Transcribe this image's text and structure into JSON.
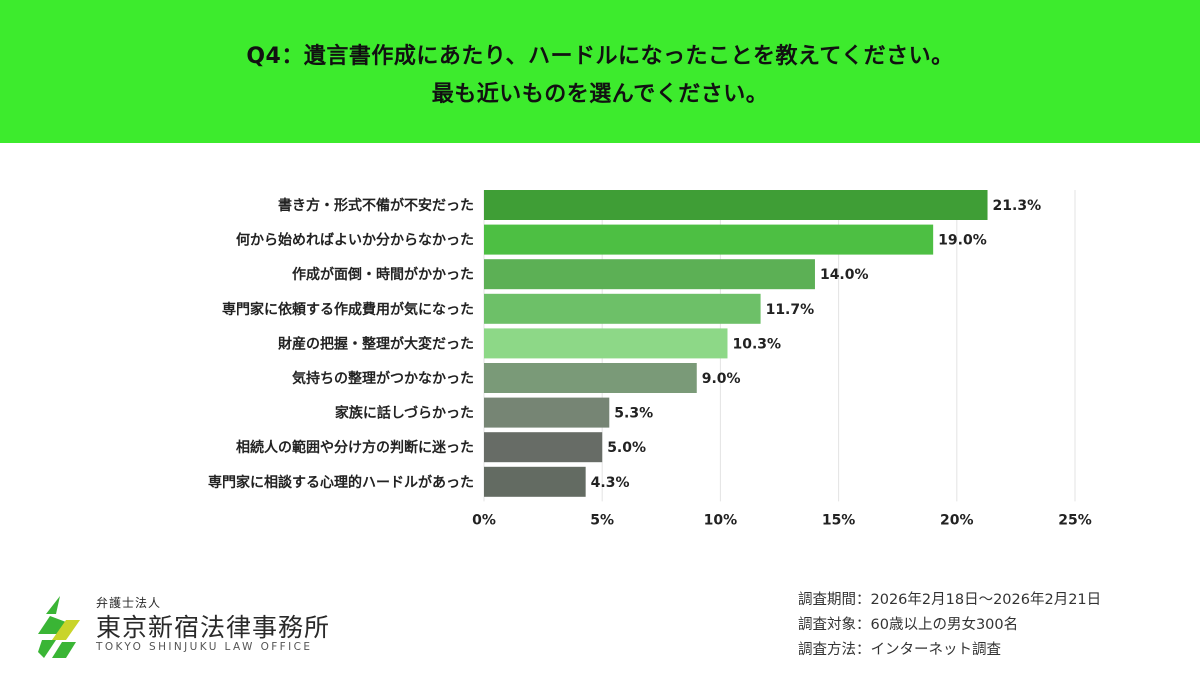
{
  "header": {
    "title_line1": "Q4：遺言書作成にあたり、ハードルになったことを教えてください。",
    "title_line2": "最も近いものを選んでください。",
    "background": "#3deb2d"
  },
  "chart_data": {
    "type": "bar",
    "orientation": "horizontal",
    "categories": [
      "書き方・形式不備が不安だった",
      "何から始めればよいか分からなかった",
      "作成が面倒・時間がかかった",
      "専門家に依頼する作成費用が気になった",
      "財産の把握・整理が大変だった",
      "気持ちの整理がつかなかった",
      "家族に話しづらかった",
      "相続人の範囲や分け方の判断に迷った",
      "専門家に相談する心理的ハードルがあった"
    ],
    "values": [
      21.3,
      19.0,
      14.0,
      11.7,
      10.3,
      9.0,
      5.3,
      5.0,
      4.3
    ],
    "value_labels": [
      "21.3%",
      "19.0%",
      "14.0%",
      "11.7%",
      "10.3%",
      "9.0%",
      "5.3%",
      "5.0%",
      "4.3%"
    ],
    "bar_colors": [
      "#3f9e36",
      "#4dbf43",
      "#5cb055",
      "#6dc068",
      "#8dd887",
      "#7a9a78",
      "#768574",
      "#676c66",
      "#636b62"
    ],
    "xlim": [
      0,
      25
    ],
    "xticks": [
      0,
      5,
      10,
      15,
      20,
      25
    ],
    "xtick_labels": [
      "0%",
      "5%",
      "10%",
      "15%",
      "20%",
      "25%"
    ],
    "grid": true,
    "title": "",
    "xlabel": "",
    "ylabel": ""
  },
  "footer": {
    "period": "調査期間：2026年2月18日～2026年2月21日",
    "target": "調査対象：60歳以上の男女300名",
    "method": "調査方法：インターネット調査"
  },
  "logo": {
    "subtitle": "弁護士法人",
    "name": "東京新宿法律事務所",
    "name_en": "TOKYO SHINJUKU LAW OFFICE",
    "colors": [
      "#3ab535",
      "#c9d42a"
    ],
    "icon": "law-office-logo-icon"
  }
}
